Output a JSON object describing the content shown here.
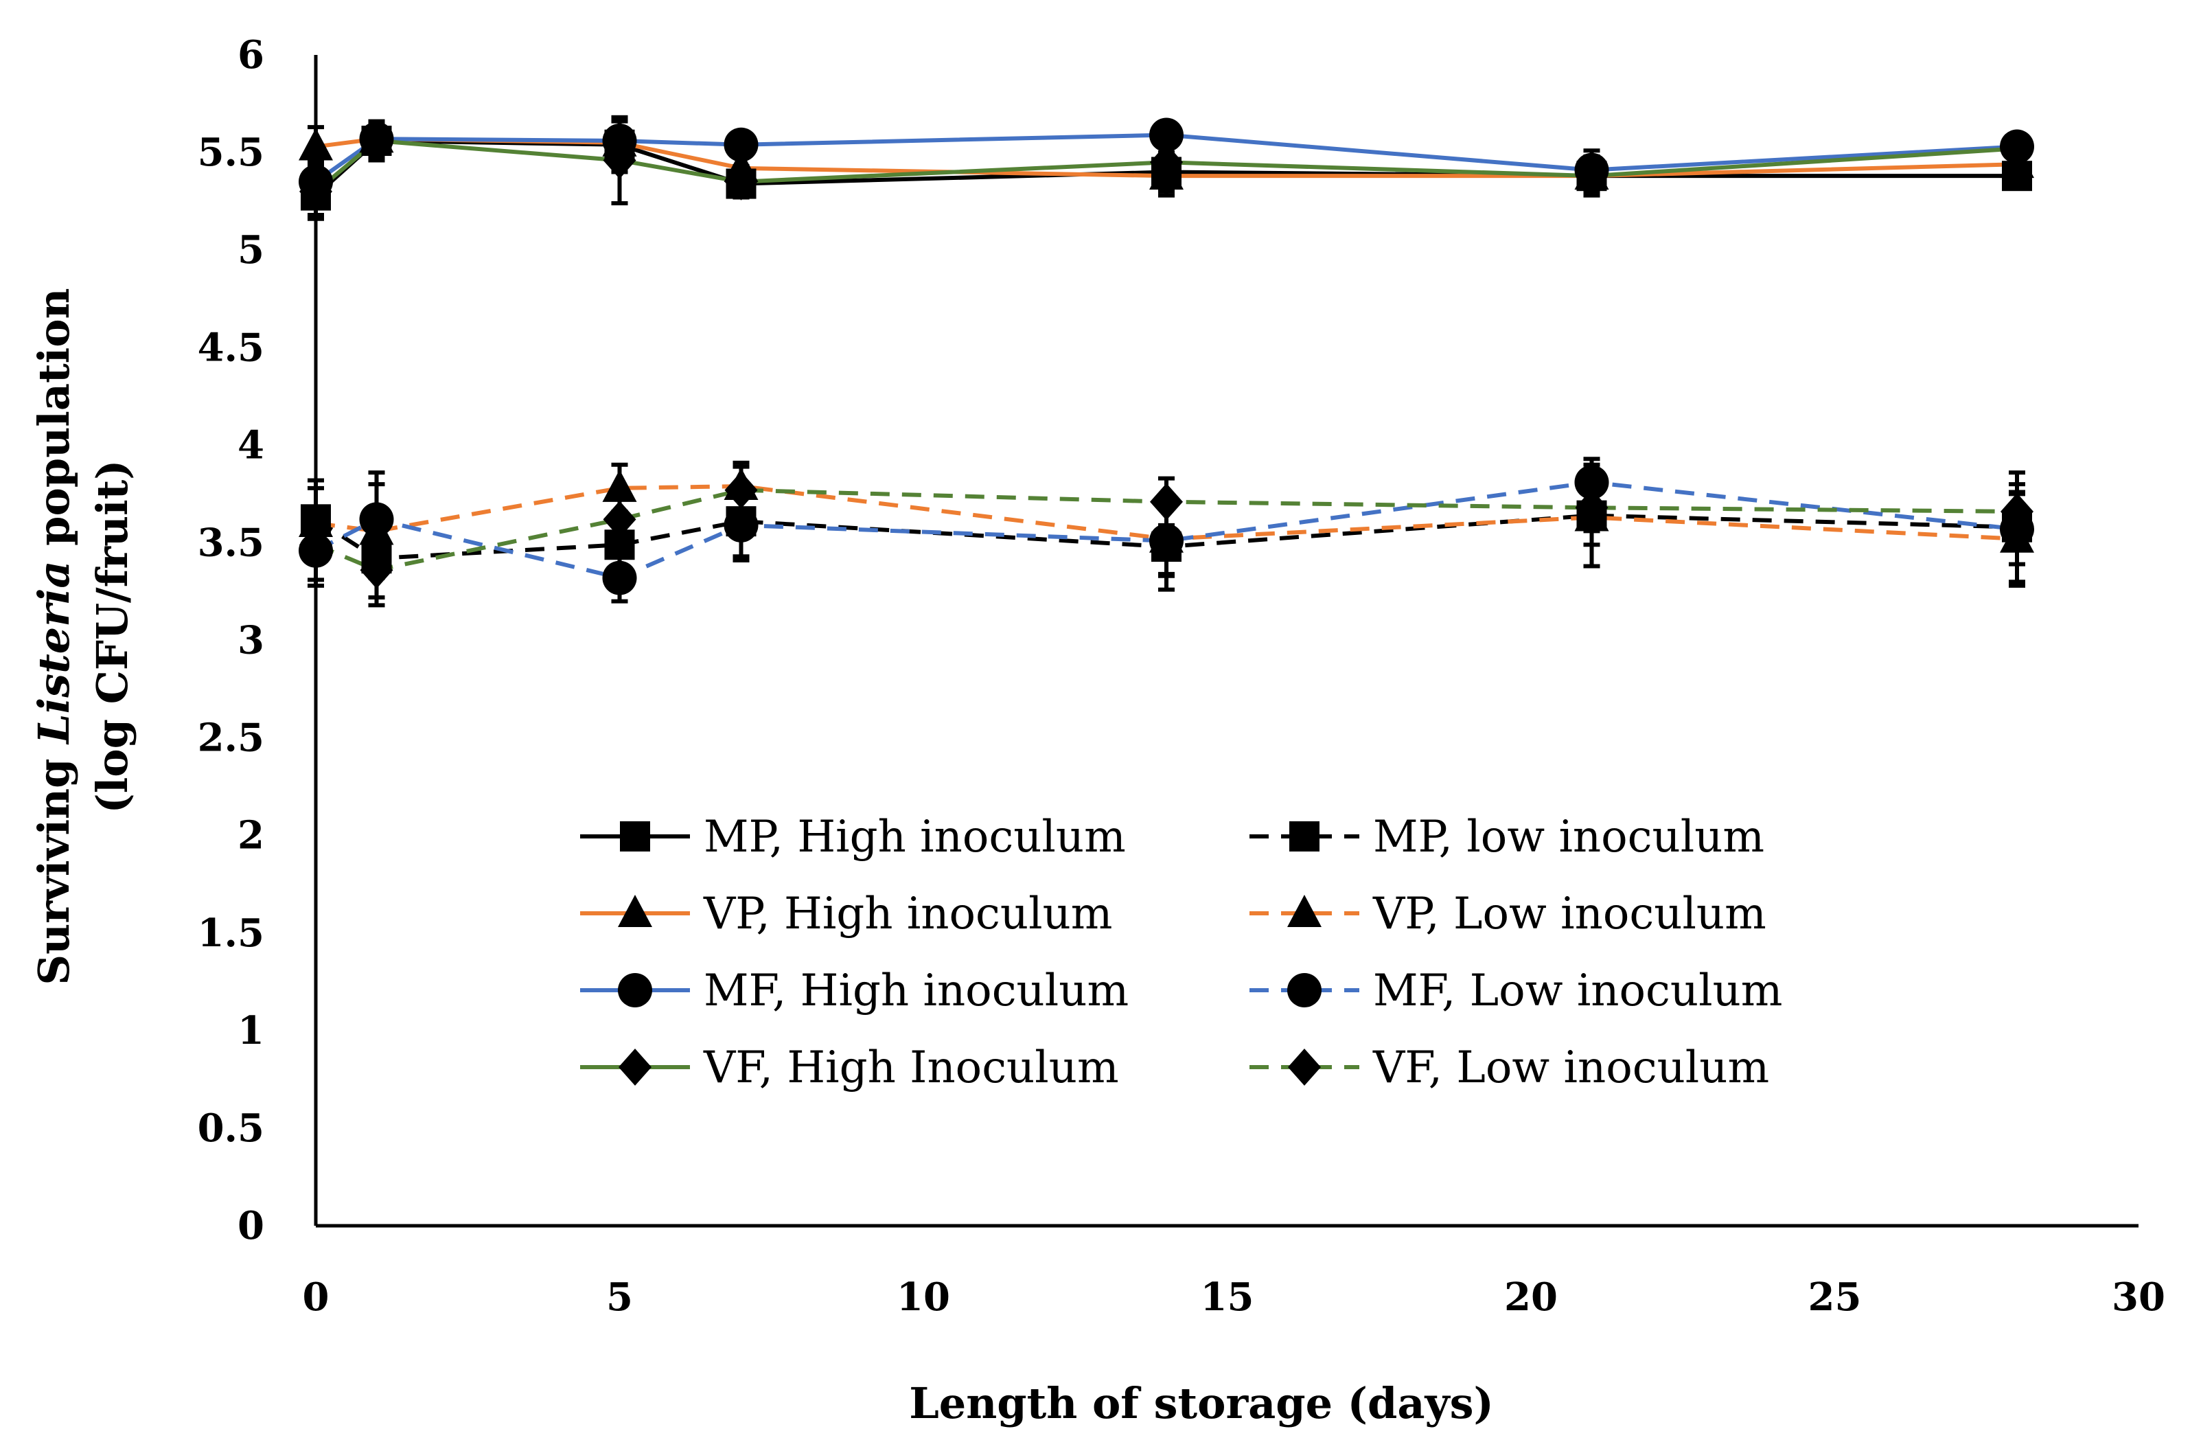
{
  "chart_data": {
    "type": "line",
    "title": "",
    "xlabel": "Length of storage (days)",
    "ylabel_line1_prefix": "Surviving ",
    "ylabel_line1_italic": "Listeria",
    "ylabel_line1_suffix": " population",
    "ylabel_line2": "(log CFU/fruit)",
    "xlim": [
      0,
      30
    ],
    "ylim": [
      0,
      6
    ],
    "x_ticks": [
      0,
      5,
      10,
      15,
      20,
      25,
      30
    ],
    "y_ticks": [
      0,
      0.5,
      1,
      1.5,
      2,
      2.5,
      3,
      3.5,
      4,
      4.5,
      5,
      5.5,
      6
    ],
    "x_tick_labels": [
      "0",
      "5",
      "10",
      "15",
      "20",
      "25",
      "30"
    ],
    "y_tick_labels": [
      "0",
      "0.5",
      "1",
      "1.5",
      "2",
      "2.5",
      "3",
      "3.5",
      "4",
      "4.5",
      "5",
      "5.5",
      "6"
    ],
    "grid": false,
    "legend_position": "lower-center",
    "x": [
      0,
      1,
      5,
      7,
      14,
      21,
      28
    ],
    "series": [
      {
        "name": "MP, High inoculum",
        "color": "#000000",
        "dash": false,
        "marker": "square",
        "values": [
          5.28,
          5.56,
          5.54,
          5.34,
          5.4,
          5.38,
          5.38
        ],
        "error": [
          0.12,
          0.1,
          0.14,
          0.06,
          0.1,
          0.08,
          0.04
        ]
      },
      {
        "name": "VP, High inoculum",
        "color": "#ED7D31",
        "dash": false,
        "marker": "triangle",
        "values": [
          5.53,
          5.57,
          5.55,
          5.42,
          5.38,
          5.38,
          5.44
        ],
        "error": [
          0.1,
          0.08,
          0.12,
          0.06,
          0.1,
          0.08,
          0.06
        ]
      },
      {
        "name": "MF, High inoculum",
        "color": "#4472C4",
        "dash": false,
        "marker": "circle",
        "values": [
          5.35,
          5.57,
          5.56,
          5.54,
          5.59,
          5.41,
          5.53
        ],
        "error": [
          0.1,
          0.06,
          0.1,
          0.04,
          0.04,
          0.1,
          0.06
        ]
      },
      {
        "name": "VF, High Inoculum",
        "color": "#548235",
        "dash": false,
        "marker": "diamond",
        "values": [
          5.3,
          5.56,
          5.46,
          5.35,
          5.45,
          5.38,
          5.52
        ],
        "error": [
          0.12,
          0.08,
          0.22,
          0.08,
          0.14,
          0.1,
          0.06
        ]
      },
      {
        "name": "MP, low inoculum",
        "color": "#000000",
        "dash": true,
        "marker": "square",
        "values": [
          3.62,
          3.42,
          3.49,
          3.61,
          3.48,
          3.64,
          3.58
        ],
        "error": [
          0.2,
          0.2,
          0.14,
          0.18,
          0.22,
          0.26,
          0.28
        ]
      },
      {
        "name": "VP, Low inoculum",
        "color": "#ED7D31",
        "dash": true,
        "marker": "triangle",
        "values": [
          3.6,
          3.56,
          3.78,
          3.79,
          3.52,
          3.63,
          3.52
        ],
        "error": [
          0.18,
          0.24,
          0.12,
          0.12,
          0.18,
          0.14,
          0.24
        ]
      },
      {
        "name": "MF, Low inoculum",
        "color": "#4472C4",
        "dash": true,
        "marker": "circle",
        "values": [
          3.46,
          3.62,
          3.32,
          3.59,
          3.51,
          3.81,
          3.57
        ],
        "error": [
          0.18,
          0.24,
          0.12,
          0.18,
          0.18,
          0.12,
          0.18
        ]
      },
      {
        "name": "VF, Low inoculum",
        "color": "#548235",
        "dash": true,
        "marker": "diamond",
        "values": [
          3.49,
          3.36,
          3.62,
          3.77,
          3.71,
          3.68,
          3.66
        ],
        "error": [
          0.18,
          0.18,
          0.14,
          0.12,
          0.12,
          0.12,
          0.14
        ]
      }
    ]
  }
}
